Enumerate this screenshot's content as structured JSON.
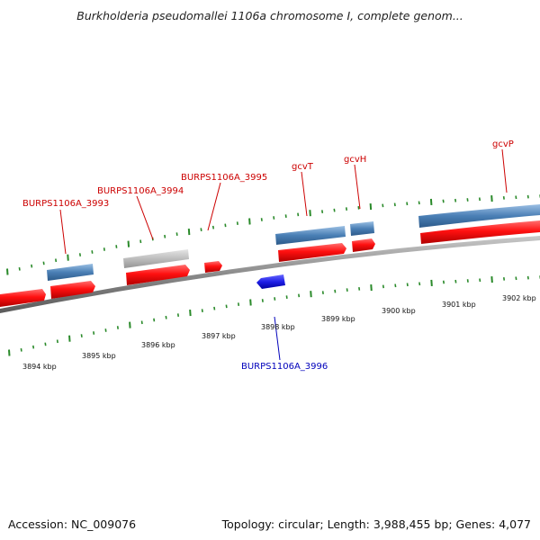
{
  "title": "Burkholderia pseudomallei 1106a chromosome I, complete genom...",
  "footer": {
    "accession": "Accession: NC_009076",
    "stats": "Topology: circular; Length: 3,988,455 bp; Genes: 4,077"
  },
  "colors": {
    "cds_red": "#ff1010",
    "gene_steelblue": "#4a7fb5",
    "gene_gray": "#bdbdbd",
    "cds_blue": "#1f1fe6",
    "tick_green": "#2a8a2a",
    "backbone": "#8a8a8a",
    "label_red": "#cc0000",
    "label_blue": "#0000bb"
  },
  "scale_labels": [
    "3894 kbp",
    "3895 kbp",
    "3896 kbp",
    "3897 kbp",
    "3898 kbp",
    "3899 kbp",
    "3900 kbp",
    "3901 kbp",
    "3902 kbp"
  ],
  "gene_labels": [
    {
      "name": "BURPS1106A_3993",
      "strand": "forward"
    },
    {
      "name": "BURPS1106A_3994",
      "strand": "forward"
    },
    {
      "name": "BURPS1106A_3995",
      "strand": "forward"
    },
    {
      "name": "gcvT",
      "strand": "forward"
    },
    {
      "name": "gcvH",
      "strand": "forward"
    },
    {
      "name": "gcvP",
      "strand": "forward"
    },
    {
      "name": "BURPS1106A_3996",
      "strand": "reverse"
    }
  ]
}
